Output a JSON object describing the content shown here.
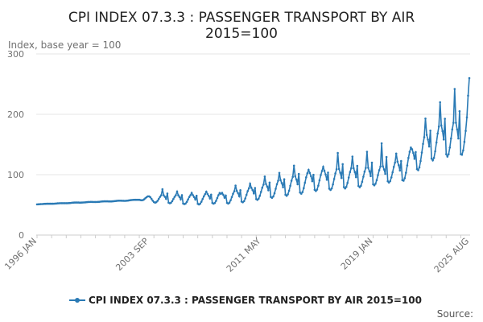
{
  "chart_data": {
    "type": "line",
    "title_line1": "CPI INDEX 07.3.3 : PASSENGER TRANSPORT BY AIR",
    "title_line2": "2015=100",
    "ylabel": "Index, base year = 100",
    "xlabel": "",
    "ylim": [
      0,
      300
    ],
    "yticks": [
      "0",
      "100",
      "200",
      "300"
    ],
    "x_ticks": [
      "1996 JAN",
      "2003 SEP",
      "2011 MAY",
      "2019 JAN",
      "2025 AUG"
    ],
    "x_range": [
      "1996 JAN",
      "2025 AUG"
    ],
    "legend": "CPI INDEX 07.3.3 : PASSENGER TRANSPORT BY AIR 2015=100",
    "legend_position": "bottom-center",
    "source_label": "Source:",
    "series_color": "#2a7ab5",
    "grid": true,
    "anchors": [
      [
        1996.0,
        51
      ],
      [
        1998.0,
        53
      ],
      [
        2000.0,
        55
      ],
      [
        2002.0,
        57
      ],
      [
        2003.8,
        60
      ],
      [
        2005.0,
        60
      ],
      [
        2006.0,
        59
      ],
      [
        2007.0,
        59
      ],
      [
        2008.0,
        61
      ],
      [
        2009.0,
        62
      ],
      [
        2010.0,
        65
      ],
      [
        2011.0,
        70
      ],
      [
        2012.0,
        75
      ],
      [
        2013.0,
        80
      ],
      [
        2014.0,
        85
      ],
      [
        2015.0,
        90
      ],
      [
        2016.0,
        92
      ],
      [
        2017.0,
        95
      ],
      [
        2018.0,
        96
      ],
      [
        2019.0,
        98
      ],
      [
        2020.0,
        102
      ],
      [
        2021.0,
        108
      ],
      [
        2022.0,
        130
      ],
      [
        2023.0,
        150
      ],
      [
        2024.0,
        160
      ],
      [
        2025.0,
        160
      ],
      [
        2025.4,
        175
      ],
      [
        2025.6,
        235
      ]
    ],
    "seasonal_amplitude": [
      [
        1996.0,
        0.3
      ],
      [
        2003.0,
        0.6
      ],
      [
        2003.8,
        10
      ],
      [
        2005.0,
        12
      ],
      [
        2008.0,
        15
      ],
      [
        2011.0,
        20
      ],
      [
        2014.0,
        28
      ],
      [
        2017.0,
        30
      ],
      [
        2020.0,
        25
      ],
      [
        2022.0,
        40
      ],
      [
        2024.0,
        50
      ],
      [
        2025.6,
        50
      ]
    ],
    "peaks": [
      [
        2004.0,
        76
      ],
      [
        2005.0,
        72
      ],
      [
        2006.0,
        70
      ],
      [
        2007.0,
        72
      ],
      [
        2008.0,
        68
      ],
      [
        2009.0,
        82
      ],
      [
        2010.0,
        85
      ],
      [
        2011.0,
        97
      ],
      [
        2012.0,
        103
      ],
      [
        2013.0,
        115
      ],
      [
        2014.0,
        108
      ],
      [
        2015.0,
        113
      ],
      [
        2016.0,
        136
      ],
      [
        2017.0,
        130
      ],
      [
        2018.0,
        138
      ],
      [
        2019.0,
        152
      ],
      [
        2020.0,
        135
      ],
      [
        2021.0,
        145
      ],
      [
        2022.0,
        193
      ],
      [
        2023.0,
        220
      ],
      [
        2024.0,
        242
      ]
    ]
  }
}
